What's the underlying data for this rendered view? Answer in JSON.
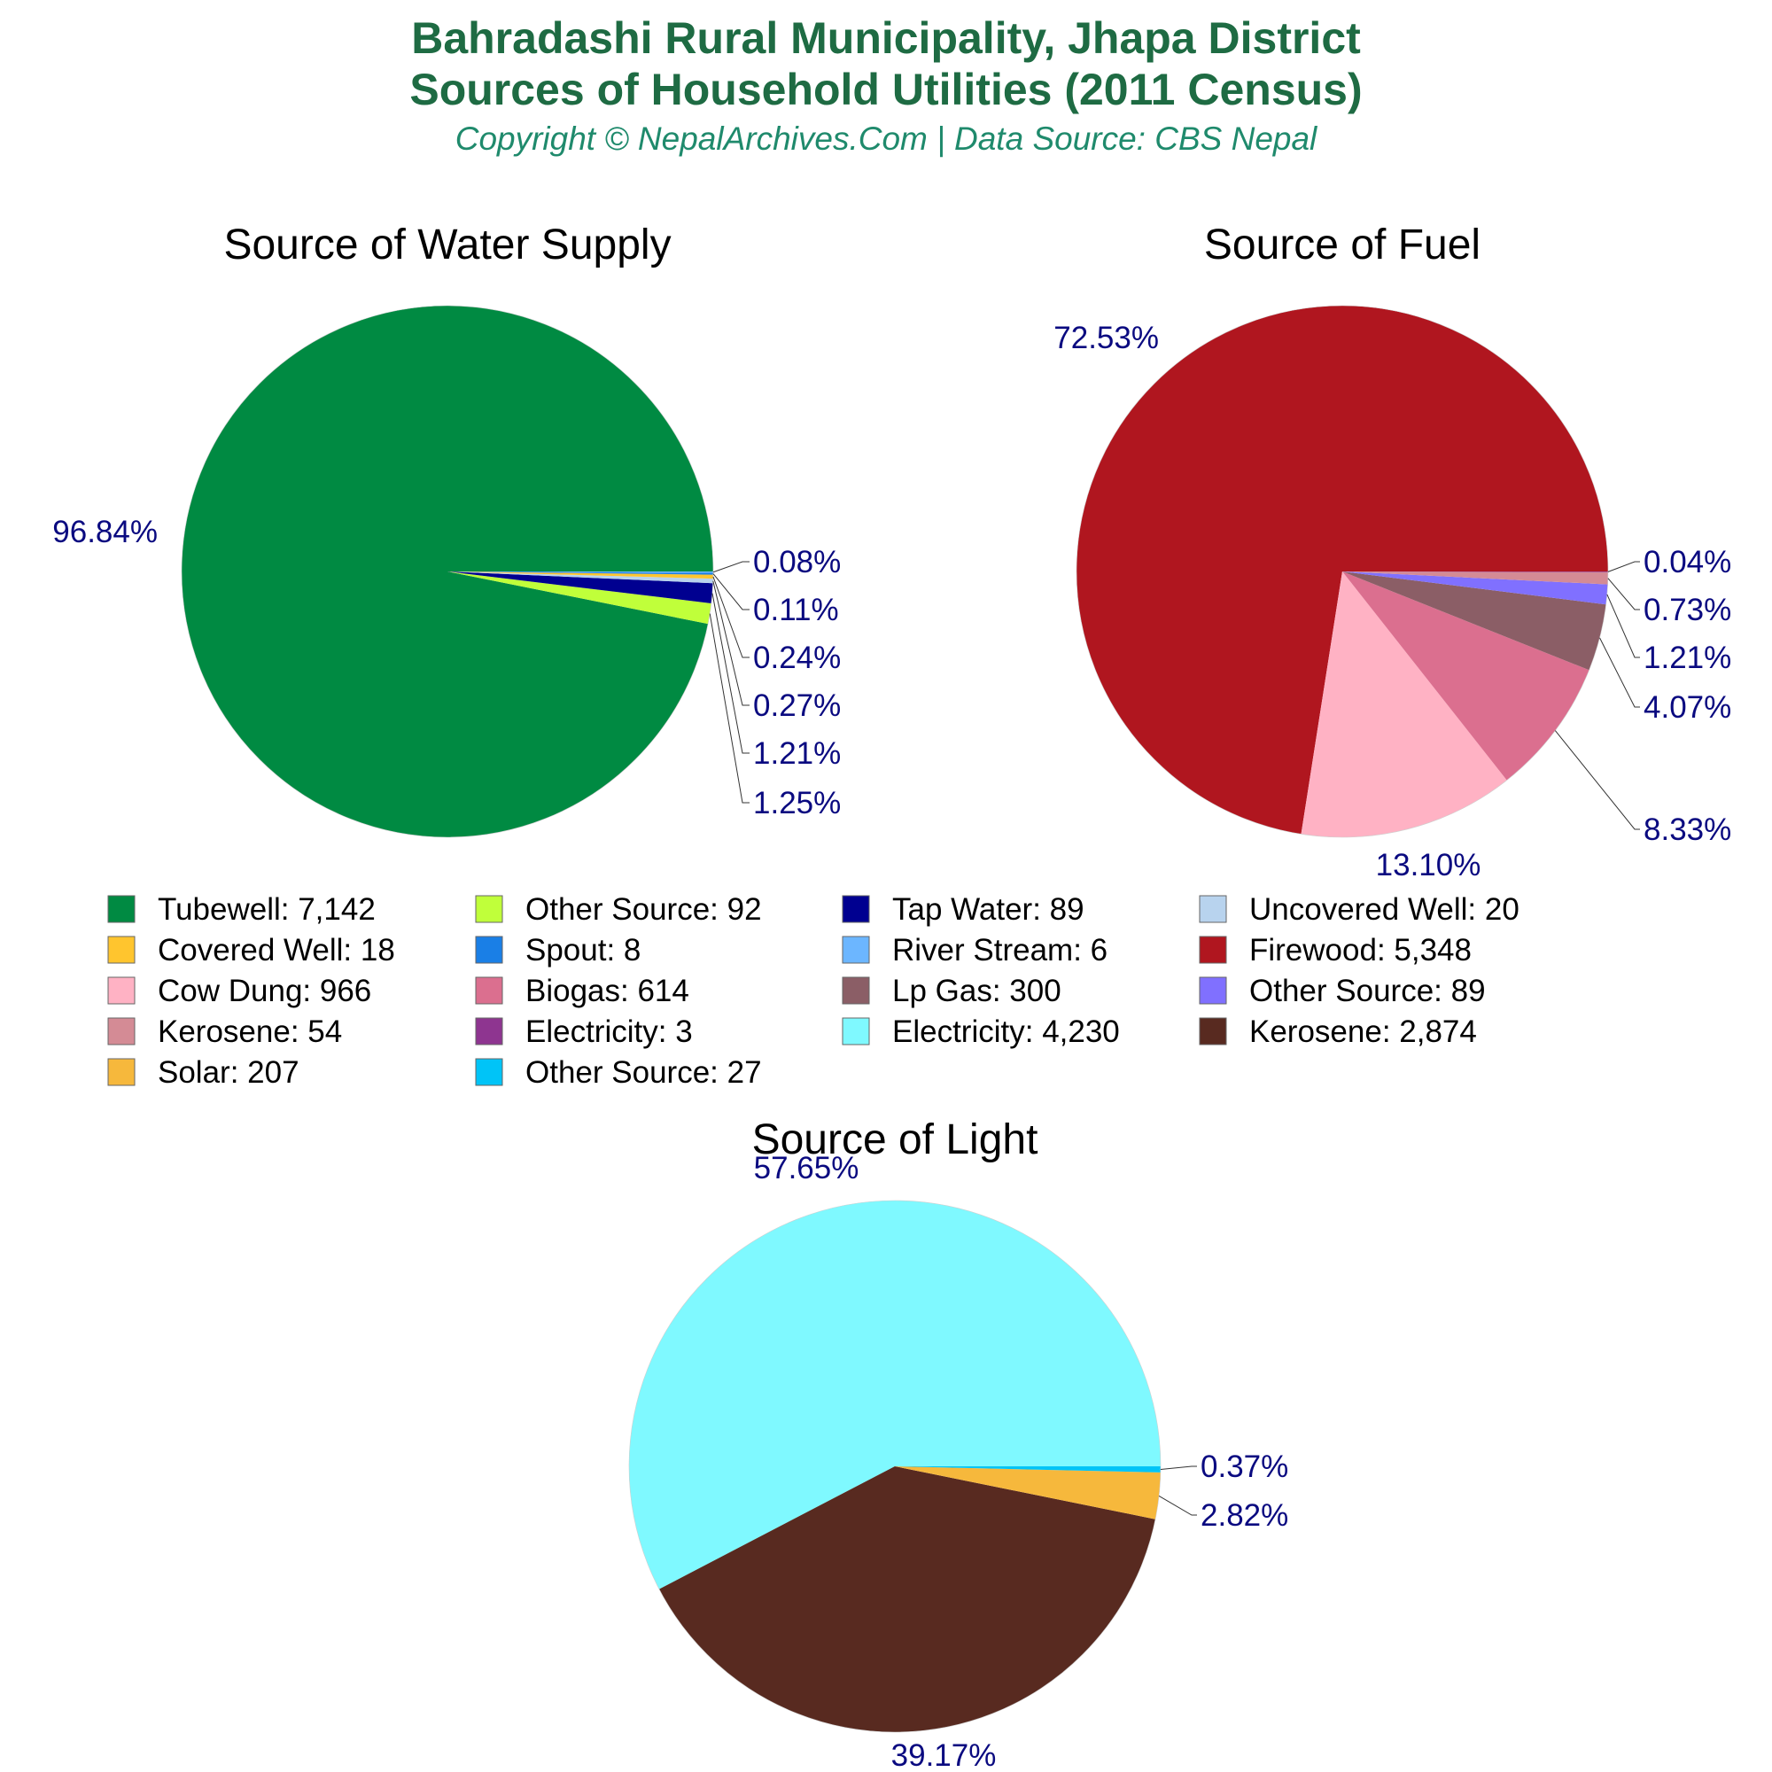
{
  "header": {
    "title_line1": "Bahradashi Rural Municipality, Jhapa District",
    "title_line2": "Sources of Household Utilities (2011 Census)",
    "subtitle": "Copyright © NepalArchives.Com | Data Source: CBS Nepal"
  },
  "colors": {
    "title": "#1e6b43",
    "subtitle": "#1f8a6c",
    "pct_label": "#0a0a80",
    "chart_title": "#000000"
  },
  "chart_data": [
    {
      "type": "pie",
      "title": "Source of Water Supply",
      "slices": [
        {
          "name": "Tubewell",
          "value": 7142,
          "pct": "96.84%",
          "color": "#008a42"
        },
        {
          "name": "Other Source",
          "value": 92,
          "pct": "1.25%",
          "color": "#c0ff3a"
        },
        {
          "name": "Tap Water",
          "value": 89,
          "pct": "1.21%",
          "color": "#000090"
        },
        {
          "name": "Uncovered Well",
          "value": 20,
          "pct": "0.27%",
          "color": "#b8d3ee"
        },
        {
          "name": "Covered Well",
          "value": 18,
          "pct": "0.24%",
          "color": "#ffc52e"
        },
        {
          "name": "Spout",
          "value": 8,
          "pct": "0.11%",
          "color": "#1a7fe6"
        },
        {
          "name": "River Stream",
          "value": 6,
          "pct": "0.08%",
          "color": "#6cb6ff"
        }
      ]
    },
    {
      "type": "pie",
      "title": "Source of Fuel",
      "slices": [
        {
          "name": "Firewood",
          "value": 5348,
          "pct": "72.53%",
          "color": "#b0161f"
        },
        {
          "name": "Cow Dung",
          "value": 966,
          "pct": "13.10%",
          "color": "#ffb2c4"
        },
        {
          "name": "Biogas",
          "value": 614,
          "pct": "8.33%",
          "color": "#db6f8f"
        },
        {
          "name": "Lp Gas",
          "value": 300,
          "pct": "4.07%",
          "color": "#8b5e66"
        },
        {
          "name": "Other Source",
          "value": 89,
          "pct": "1.21%",
          "color": "#8070ff"
        },
        {
          "name": "Kerosene",
          "value": 54,
          "pct": "0.73%",
          "color": "#d48b95"
        },
        {
          "name": "Electricity",
          "value": 3,
          "pct": "0.04%",
          "color": "#8e3590"
        }
      ]
    },
    {
      "type": "pie",
      "title": "Source of Light",
      "slices": [
        {
          "name": "Electricity",
          "value": 4230,
          "pct": "57.65%",
          "color": "#7ff9ff"
        },
        {
          "name": "Kerosene",
          "value": 2874,
          "pct": "39.17%",
          "color": "#582a20"
        },
        {
          "name": "Solar",
          "value": 207,
          "pct": "2.82%",
          "color": "#f6b83c"
        },
        {
          "name": "Other Source",
          "value": 27,
          "pct": "0.37%",
          "color": "#00c4f7"
        }
      ]
    }
  ],
  "legend": [
    {
      "label": "Tubewell: 7,142",
      "color": "#008a42"
    },
    {
      "label": "Other Source: 92",
      "color": "#c0ff3a"
    },
    {
      "label": "Tap Water: 89",
      "color": "#000090"
    },
    {
      "label": "Uncovered Well: 20",
      "color": "#b8d3ee"
    },
    {
      "label": "Covered Well: 18",
      "color": "#ffc52e"
    },
    {
      "label": "Spout: 8",
      "color": "#1a7fe6"
    },
    {
      "label": "River Stream: 6",
      "color": "#6cb6ff"
    },
    {
      "label": "Firewood: 5,348",
      "color": "#b0161f"
    },
    {
      "label": "Cow Dung: 966",
      "color": "#ffb2c4"
    },
    {
      "label": "Biogas: 614",
      "color": "#db6f8f"
    },
    {
      "label": "Lp Gas: 300",
      "color": "#8b5e66"
    },
    {
      "label": "Other Source: 89",
      "color": "#8070ff"
    },
    {
      "label": "Kerosene: 54",
      "color": "#d48b95"
    },
    {
      "label": "Electricity: 3",
      "color": "#8e3590"
    },
    {
      "label": "Electricity: 4,230",
      "color": "#7ff9ff"
    },
    {
      "label": "Kerosene: 2,874",
      "color": "#582a20"
    },
    {
      "label": "Solar: 207",
      "color": "#f6b83c"
    },
    {
      "label": "Other Source: 27",
      "color": "#00c4f7"
    }
  ]
}
